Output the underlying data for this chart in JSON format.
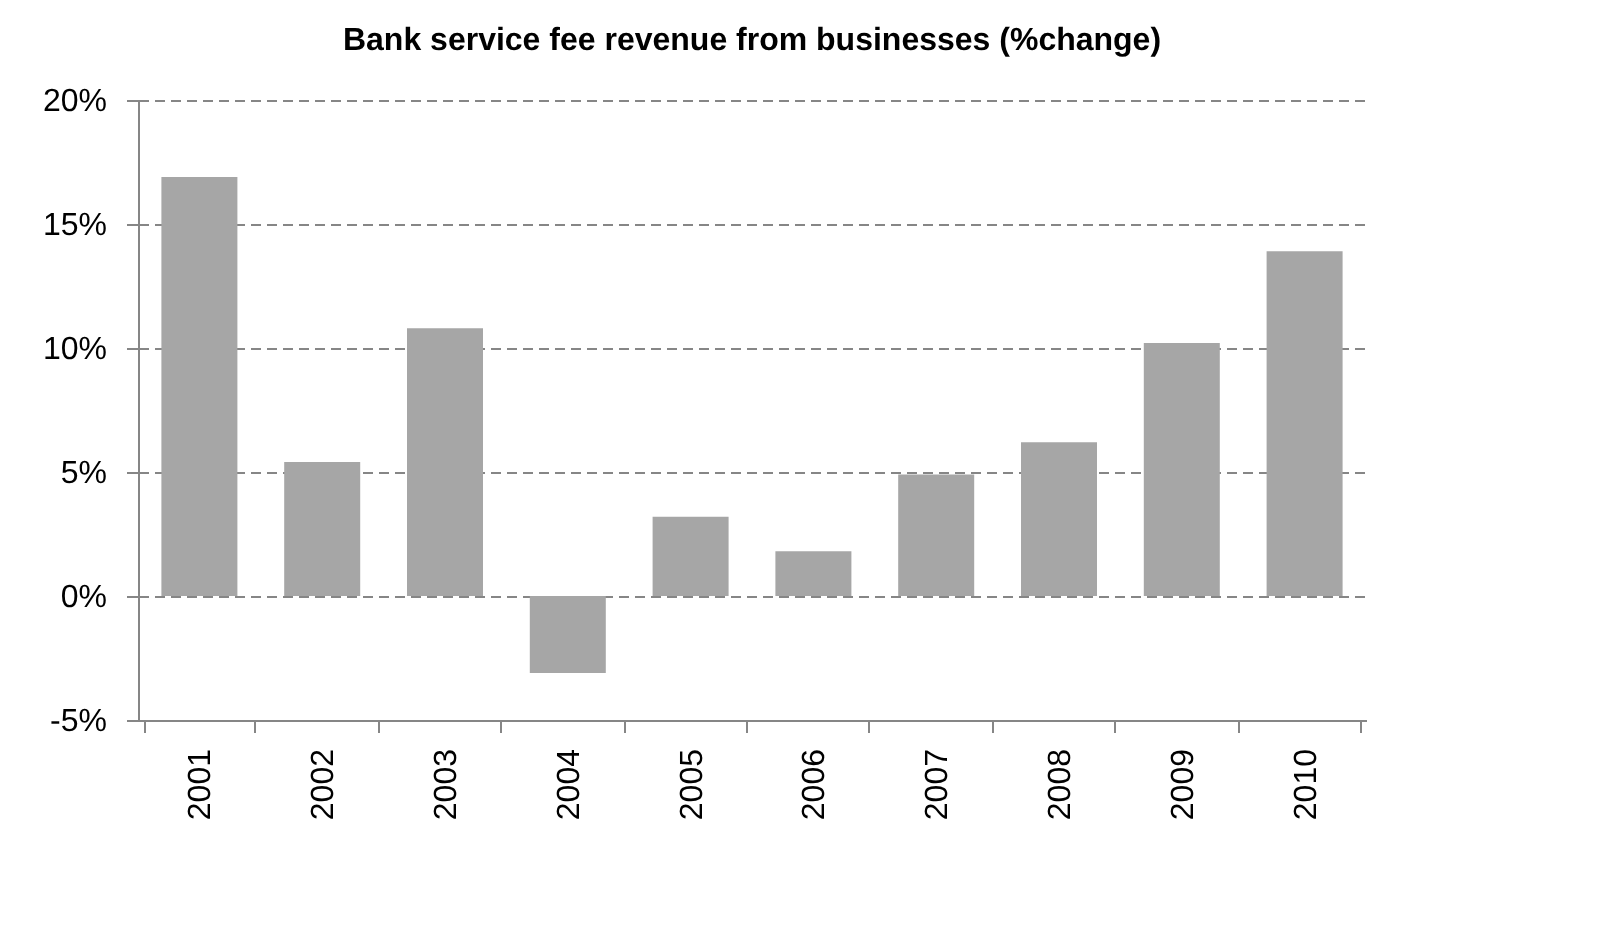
{
  "chart_data": {
    "type": "bar",
    "title": "Bank service fee revenue from businesses (%change)",
    "categories": [
      "2001",
      "2002",
      "2003",
      "2004",
      "2005",
      "2006",
      "2007",
      "2008",
      "2009",
      "2010"
    ],
    "values": [
      16.9,
      5.4,
      10.8,
      -3.1,
      3.2,
      1.8,
      4.9,
      6.2,
      10.2,
      13.9
    ],
    "color": "#a6a6a6",
    "ylim": [
      -5,
      20
    ],
    "yticks": [
      {
        "value": -5,
        "label": "-5%"
      },
      {
        "value": 0,
        "label": "0%"
      },
      {
        "value": 5,
        "label": "5%"
      },
      {
        "value": 10,
        "label": "10%"
      },
      {
        "value": 15,
        "label": "15%"
      },
      {
        "value": 20,
        "label": "20%"
      }
    ],
    "grid": "y"
  }
}
